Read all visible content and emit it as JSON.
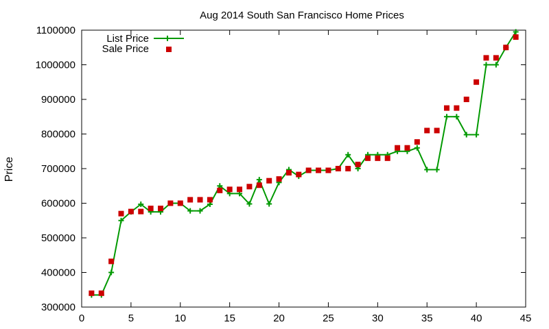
{
  "chart_data": {
    "type": "line",
    "title": "Aug 2014 South San Francisco Home Prices",
    "xlabel": "",
    "ylabel": "Price",
    "xlim": [
      0,
      45
    ],
    "ylim": [
      300000,
      1100000
    ],
    "xticks": [
      0,
      5,
      10,
      15,
      20,
      25,
      30,
      35,
      40,
      45
    ],
    "yticks": [
      300000,
      400000,
      500000,
      600000,
      700000,
      800000,
      900000,
      1000000,
      1100000
    ],
    "grid": false,
    "legend_position": "top-left",
    "series": [
      {
        "name": "List Price",
        "style": "line+plus",
        "color": "#009900",
        "x": [
          1,
          2,
          3,
          4,
          5,
          6,
          7,
          8,
          9,
          10,
          11,
          12,
          13,
          14,
          15,
          16,
          17,
          18,
          19,
          20,
          21,
          22,
          23,
          24,
          25,
          26,
          27,
          28,
          29,
          30,
          31,
          32,
          33,
          34,
          35,
          36,
          37,
          38,
          39,
          40,
          41,
          42,
          43,
          44
        ],
        "y": [
          335000,
          335000,
          400000,
          550000,
          575000,
          597000,
          575000,
          575000,
          600000,
          600000,
          578000,
          578000,
          597000,
          650000,
          628000,
          628000,
          598000,
          668000,
          598000,
          660000,
          697000,
          678000,
          695000,
          695000,
          695000,
          700000,
          740000,
          700000,
          740000,
          740000,
          740000,
          750000,
          750000,
          760000,
          697000,
          697000,
          850000,
          850000,
          798000,
          798000,
          1000000,
          1000000,
          1050000,
          1095000
        ]
      },
      {
        "name": "Sale Price",
        "style": "square-points",
        "color": "#cc0000",
        "x": [
          1,
          2,
          3,
          4,
          5,
          6,
          7,
          8,
          9,
          10,
          11,
          12,
          13,
          14,
          15,
          16,
          17,
          18,
          19,
          20,
          21,
          22,
          23,
          24,
          25,
          26,
          27,
          28,
          29,
          30,
          31,
          32,
          33,
          34,
          35,
          36,
          37,
          38,
          39,
          40,
          41,
          42,
          43,
          44
        ],
        "y": [
          340000,
          340000,
          432000,
          570000,
          576000,
          576000,
          585000,
          585000,
          600000,
          600000,
          610000,
          610000,
          610000,
          637000,
          640000,
          640000,
          648000,
          652000,
          665000,
          670000,
          688000,
          683000,
          695000,
          695000,
          695000,
          700000,
          700000,
          712000,
          730000,
          730000,
          730000,
          760000,
          760000,
          777000,
          810000,
          810000,
          875000,
          875000,
          900000,
          950000,
          1020000,
          1020000,
          1050000,
          1080000
        ]
      }
    ]
  }
}
